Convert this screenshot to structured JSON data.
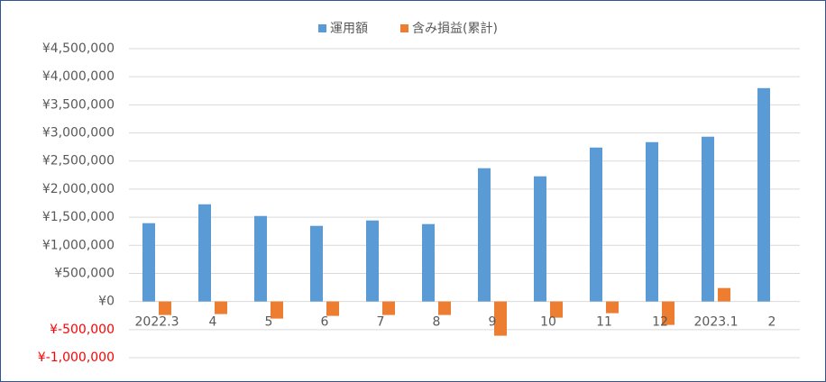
{
  "chart_data": {
    "type": "bar",
    "categories": [
      "2022.3",
      "4",
      "5",
      "6",
      "7",
      "8",
      "9",
      "10",
      "11",
      "12",
      "2023.1",
      "2"
    ],
    "series": [
      {
        "name": "運用額",
        "color": "#5b9bd5",
        "values": [
          1394000,
          1730000,
          1522000,
          1346000,
          1442000,
          1378000,
          2372000,
          2228000,
          2740000,
          2836000,
          2933000,
          3798000
        ]
      },
      {
        "name": "含み損益(累計)",
        "color": "#ed7d31",
        "values": [
          -240000,
          -224000,
          -304000,
          -256000,
          -240000,
          -240000,
          -609000,
          -288000,
          -208000,
          -417000,
          240000,
          null
        ]
      }
    ],
    "ylim": [
      -1000000,
      4500000
    ],
    "yticks": [
      {
        "value": -1000000,
        "label": "¥-1,000,000"
      },
      {
        "value": -500000,
        "label": "¥-500,000"
      },
      {
        "value": 0,
        "label": "¥0"
      },
      {
        "value": 500000,
        "label": "¥500,000"
      },
      {
        "value": 1000000,
        "label": "¥1,000,000"
      },
      {
        "value": 1500000,
        "label": "¥1,500,000"
      },
      {
        "value": 2000000,
        "label": "¥2,000,000"
      },
      {
        "value": 2500000,
        "label": "¥2,500,000"
      },
      {
        "value": 3000000,
        "label": "¥3,000,000"
      },
      {
        "value": 3500000,
        "label": "¥3,500,000"
      },
      {
        "value": 4000000,
        "label": "¥4,000,000"
      },
      {
        "value": 4500000,
        "label": "¥4,500,000"
      }
    ],
    "negative_tick_color": "#ff0000",
    "grid": true,
    "legend": "top"
  }
}
